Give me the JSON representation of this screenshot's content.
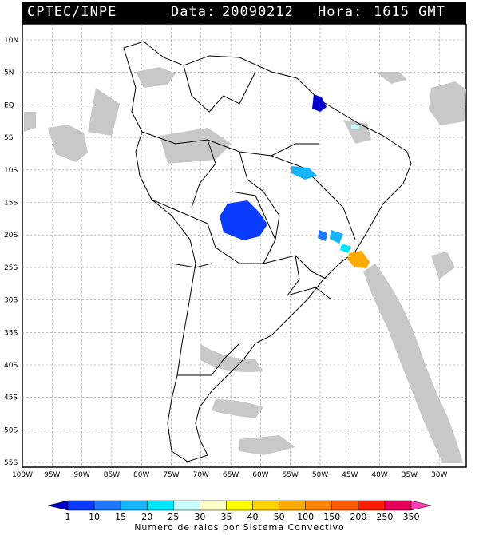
{
  "header": {
    "source": "CPTEC/INPE",
    "date_label": "Data:",
    "date": "20090212",
    "time_label": "Hora:",
    "time": "1615 GMT"
  },
  "map": {
    "lat_ticks": [
      "10N",
      "5N",
      "EQ",
      "5S",
      "10S",
      "15S",
      "20S",
      "25S",
      "30S",
      "35S",
      "40S",
      "45S",
      "50S",
      "55S"
    ],
    "lon_ticks": [
      "100W",
      "95W",
      "90W",
      "85W",
      "80W",
      "75W",
      "70W",
      "65W",
      "60W",
      "55W",
      "50W",
      "45W",
      "40W",
      "35W",
      "30W"
    ]
  },
  "legend": {
    "labels": [
      "1",
      "10",
      "15",
      "20",
      "25",
      "30",
      "35",
      "40",
      "50",
      "100",
      "150",
      "200",
      "250",
      "350"
    ],
    "colors": [
      "#0000cc",
      "#0a3cff",
      "#1e78ff",
      "#14b4ff",
      "#00e6ff",
      "#c8ffff",
      "#ffffc8",
      "#ffff00",
      "#ffd200",
      "#ffaa00",
      "#ff8200",
      "#ff5a00",
      "#ff1e00",
      "#e6005a",
      "#ff3cb4"
    ],
    "title": "Numero de raios por Sistema Convectivo"
  }
}
